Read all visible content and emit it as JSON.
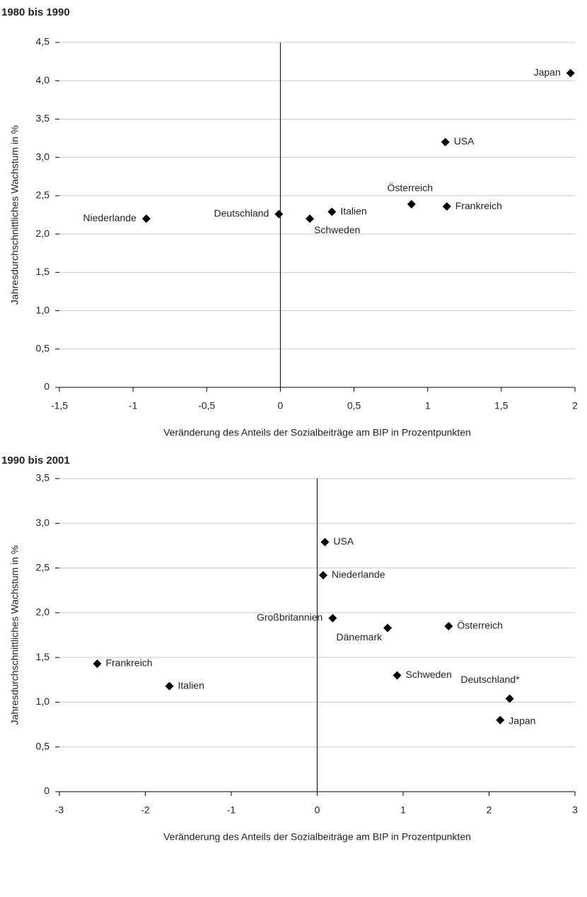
{
  "chart_data": [
    {
      "type": "scatter",
      "title": "1980 bis 1990",
      "xlabel": "Veränderung des Anteils der Sozialbeiträge am BIP in Prozentpunkten",
      "ylabel": "Jahresdurchschnittliches Wachstum in %",
      "labels": [
        "Japan",
        "USA",
        "Österreich",
        "Frankreich",
        "Italien",
        "Schweden",
        "Deutschland",
        "Niederlande"
      ],
      "x": [
        1.97,
        1.12,
        0.89,
        1.13,
        0.35,
        0.2,
        -0.01,
        -0.91
      ],
      "values": [
        4.1,
        3.2,
        2.39,
        2.36,
        2.29,
        2.2,
        2.26,
        2.2
      ],
      "color": "#000000",
      "xlim": [
        -1.5,
        2
      ],
      "xticks": [
        {
          "value": -1.5,
          "label": "-1,5"
        },
        -1,
        {
          "value": -0.5,
          "label": "-0,5"
        },
        0,
        {
          "value": 0.5,
          "label": "0,5"
        },
        1,
        {
          "value": 1.5,
          "label": "1,5"
        },
        2
      ],
      "ylim": [
        0,
        4.5
      ],
      "yticks": [
        0,
        {
          "value": 0.5,
          "label": "0,5"
        },
        {
          "value": 1,
          "label": "1,0"
        },
        {
          "value": 1.5,
          "label": "1,5"
        },
        {
          "value": 2,
          "label": "2,0"
        },
        {
          "value": 2.5,
          "label": "2,5"
        },
        {
          "value": 3,
          "label": "3,0"
        },
        {
          "value": 3.5,
          "label": "3,5"
        },
        {
          "value": 4,
          "label": "4,0"
        },
        {
          "value": 4.5,
          "label": "4,5"
        }
      ],
      "grid": true
    },
    {
      "type": "scatter",
      "title": "1990 bis 2001",
      "xlabel": "Veränderung des Anteils der Sozialbeiträge am BIP in Prozentpunkten",
      "ylabel": "Jahresdurchschnittliches Wachstum in %",
      "labels": [
        "USA",
        "Niederlande",
        "Großbritannien",
        "Dänemark",
        "Österreich",
        "Frankreich",
        "Italien",
        "Schweden",
        "Deutschland*",
        "Japan"
      ],
      "x": [
        0.09,
        0.07,
        0.18,
        0.82,
        1.53,
        -2.56,
        -1.72,
        0.93,
        2.24,
        2.13
      ],
      "values": [
        2.79,
        2.42,
        1.94,
        1.83,
        1.85,
        1.43,
        1.18,
        1.3,
        1.04,
        0.8
      ],
      "color": "#000000",
      "xlim": [
        -3,
        3
      ],
      "xticks": [
        -3,
        -2,
        -1,
        0,
        1,
        2,
        3
      ],
      "ylim": [
        0,
        3.5
      ],
      "yticks": [
        0,
        {
          "value": 0.5,
          "label": "0,5"
        },
        {
          "value": 1,
          "label": "1,0"
        },
        {
          "value": 1.5,
          "label": "1,5"
        },
        {
          "value": 2,
          "label": "2,0"
        },
        {
          "value": 2.5,
          "label": "2,5"
        },
        {
          "value": 3,
          "label": "3,0"
        },
        {
          "value": 3.5,
          "label": "3,5"
        }
      ],
      "grid": true
    }
  ]
}
